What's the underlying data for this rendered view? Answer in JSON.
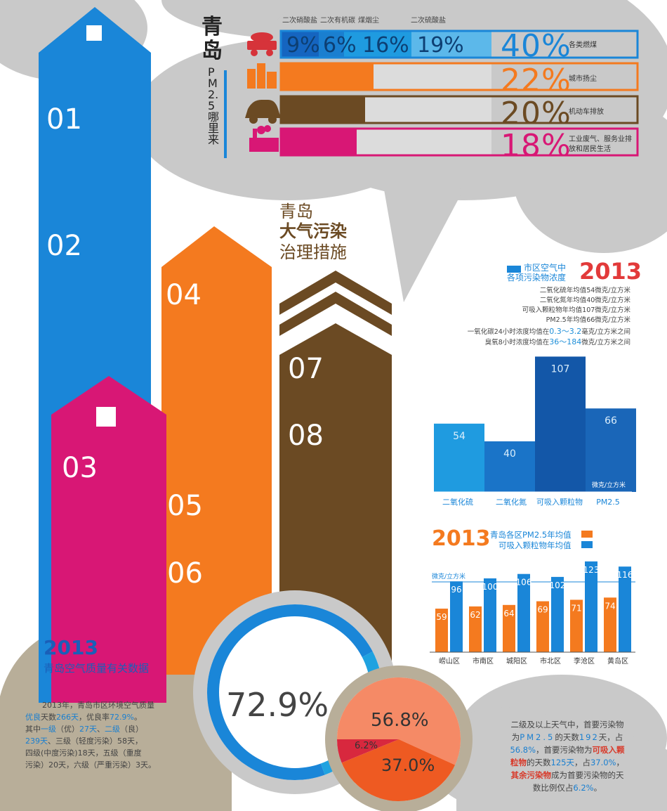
{
  "colors": {
    "blue": "#1a86d8",
    "orange": "#f47a1f",
    "magenta": "#d81775",
    "brown": "#6b4a23",
    "gray_bg": "#c8c8c8",
    "dark_blue": "#1357a8"
  },
  "arrows": {
    "labels": [
      "01",
      "02",
      "03",
      "04",
      "05",
      "06",
      "07",
      "08"
    ]
  },
  "sources": {
    "title_main": "青岛",
    "title_sub": "PM2.5哪里来",
    "sub_labels": [
      "二次硝酸盐",
      "二次有机碳",
      "煤烟尘",
      "二次硫酸盐"
    ],
    "sub_values": [
      "9%",
      "6%",
      "16%",
      "19%"
    ],
    "rows": [
      {
        "pct": "40%",
        "label": "各类燃煤",
        "icon": "coal-cart-icon",
        "color": "#1a86d8"
      },
      {
        "pct": "22%",
        "label": "城市扬尘",
        "icon": "buildings-icon",
        "color": "#f47a1f"
      },
      {
        "pct": "20%",
        "label": "机动车排放",
        "icon": "car-icon",
        "color": "#6b4a23"
      },
      {
        "pct": "18%",
        "label": "工业废气、服务业排放和居民生活",
        "icon": "factory-icon",
        "color": "#d81775"
      }
    ]
  },
  "measures": {
    "line1": "青岛",
    "line2": "大气污染",
    "line3": "治理措施"
  },
  "facts": {
    "head_line1": "市区空气中",
    "head_line2": "各项污染物浓度",
    "year": "2013",
    "lines": [
      "二氧化硫年均值54微克/立方米",
      "二氧化氮年均值40微克/立方米",
      "可吸入颗粒物年均值107微克/立方米",
      "PM2.5年均值66微克/立方米"
    ],
    "co_pre": "一氧化碳24小时浓度均值在",
    "co_range": "0.3～3.2",
    "co_post": "毫克/立方米之间",
    "o3_pre": "臭氧8小时浓度均值在",
    "o3_range": "36～184",
    "o3_post": "微克/立方米之间"
  },
  "chart_data": [
    {
      "type": "bar",
      "categories": [
        "二氧化硫",
        "二氧化氮",
        "可吸入颗粒物",
        "PM2.5"
      ],
      "values": [
        54,
        40,
        107,
        66
      ],
      "unit": "微克/立方米",
      "colors": [
        "#1f9be0",
        "#1a74c8",
        "#1357a8",
        "#1a66b8"
      ]
    },
    {
      "type": "bar",
      "year": "2013",
      "categories": [
        "崂山区",
        "市南区",
        "城阳区",
        "市北区",
        "李沧区",
        "黄岛区"
      ],
      "series": [
        {
          "name": "青岛各区PM2.5年均值",
          "values": [
            59,
            62,
            64,
            69,
            71,
            74
          ],
          "color": "#f47a1f"
        },
        {
          "name": "可吸入颗粒物年均值",
          "values": [
            96,
            100,
            106,
            102,
            123,
            116
          ],
          "color": "#1a86d8"
        }
      ],
      "unit": "微克/立方米"
    },
    {
      "type": "pie",
      "values": [
        72.9,
        27.1
      ],
      "label": "72.9%",
      "colors": [
        "#1a86d8",
        "#1fa2e0"
      ]
    },
    {
      "type": "pie",
      "values": [
        56.8,
        37.0,
        6.2
      ],
      "labels": [
        "56.8%",
        "37.0%",
        "6.2%"
      ],
      "colors": [
        "#f58a66",
        "#ee5a22",
        "#d8283e"
      ]
    }
  ],
  "summary": {
    "year": "2013",
    "title": "青岛空气质量有关数据",
    "p1_a": "2013年，青岛市区环境空气质量",
    "p1_b": "优良",
    "p1_c": "天数",
    "p1_d": "266天",
    "p1_e": "，优良率",
    "p1_f": "72.9%",
    "p1_g": "。",
    "p2_a": "其中",
    "p2_b": "一级",
    "p2_c": "（优）",
    "p2_d": "27天",
    "p2_e": "、",
    "p2_f": "二级",
    "p2_g": "（良）",
    "p3_a": "239天",
    "p3_b": "、三级（轻度污染）58天，",
    "p4": "四级(中度污染)18天，五级（重度",
    "p5": "污染）20天，六级（严重污染）3天。"
  },
  "pollutants": {
    "l1": "二级及以上天气中，首要污染物",
    "l2_a": "为",
    "l2_b": "PM2.5",
    "l2_c": "的天数",
    "l2_d": "192",
    "l2_e": "天，占",
    "l3_a": "56.8%",
    "l3_b": "，首要污染物为",
    "l3_c": "可吸入颗",
    "l4_a": "粒物",
    "l4_b": "的天数",
    "l4_c": "125天",
    "l4_d": "，占",
    "l4_e": "37.0%",
    "l4_f": "，",
    "l5_a": "其余污染物",
    "l5_b": "成为首要污染物的天",
    "l6_a": "数比例仅占",
    "l6_b": "6.2%",
    "l6_c": "。"
  }
}
